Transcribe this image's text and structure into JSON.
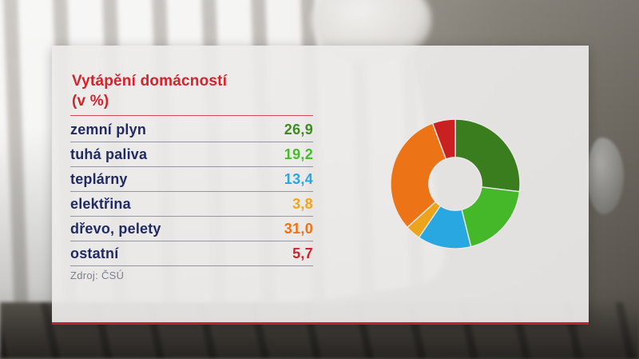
{
  "panel": {
    "title_line1": "Vytápění domácností",
    "title_line2": "(v %)",
    "source": "Zdroj: ČSÚ"
  },
  "table": {
    "rows": [
      {
        "label": "zemní plyn",
        "value": "26,9",
        "color": "#3e8c1f"
      },
      {
        "label": "tuhá paliva",
        "value": "19,2",
        "color": "#48bc28"
      },
      {
        "label": "teplárny",
        "value": "13,4",
        "color": "#2aa7e0"
      },
      {
        "label": "elektřina",
        "value": "3,8",
        "color": "#efa51c"
      },
      {
        "label": "dřevo, pelety",
        "value": "31,0",
        "color": "#ee7316"
      },
      {
        "label": "ostatní",
        "value": "5,7",
        "color": "#d1232a"
      }
    ]
  },
  "chart_data": {
    "type": "pie",
    "subtype": "donut",
    "title": "Vytápění domácností (v %)",
    "categories": [
      "zemní plyn",
      "tuhá paliva",
      "teplárny",
      "elektřina",
      "dřevo, pelety",
      "ostatní"
    ],
    "values": [
      26.9,
      19.2,
      13.4,
      3.8,
      31.0,
      5.7
    ],
    "colors": [
      "#3a7d1f",
      "#44b829",
      "#29a7e0",
      "#eda41d",
      "#ec7316",
      "#c92121"
    ],
    "start_angle_deg": 0,
    "direction": "clockwise",
    "inner_radius_ratio": 0.41,
    "segment_gap_color": "#ebeae9",
    "legend_position": "none"
  },
  "colors": {
    "accent_red": "#d2232e",
    "panel_border_red": "#c2232b",
    "label_navy": "#202a63",
    "separator_gray": "#9298a3",
    "source_gray": "#7b8090"
  }
}
